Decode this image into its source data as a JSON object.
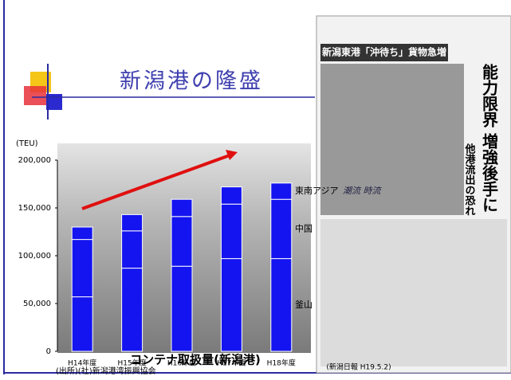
{
  "chart_data": {
    "type": "bar",
    "stacked": true,
    "title": "新潟港の隆盛",
    "y_unit": "(TEU)",
    "x_label": "コンテナ取扱量(新潟港)",
    "source": "(出所)(社)新潟港湾振興協会",
    "categories": [
      "H14年度",
      "H15年度",
      "H16年度",
      "H17年度",
      "H18年度"
    ],
    "series": [
      {
        "name": "釜山",
        "color": "#1414f0",
        "values": [
          57000,
          87000,
          89000,
          97000,
          97000
        ]
      },
      {
        "name": "中国",
        "color": "#1414f0",
        "values": [
          60000,
          39000,
          52000,
          57000,
          62000
        ]
      },
      {
        "name": "東南アジア",
        "color": "#1414f0",
        "values": [
          13000,
          17000,
          18000,
          18000,
          17000
        ]
      }
    ],
    "ylim": [
      0,
      200000
    ],
    "yticks": [
      0,
      {
        "value": 50000,
        "label": "50,000"
      },
      {
        "value": 100000,
        "label": "100,000"
      },
      {
        "value": 150000,
        "label": "150,000"
      },
      {
        "value": 200000,
        "label": "200,000"
      }
    ]
  },
  "clipping": {
    "headline": "新潟東港「沖待ち」貨物急増",
    "main": "能力限界 増強後手に",
    "sub": "他港流出の恐れ",
    "column": "潮流 時流",
    "citation": "(新潟日報 H19.5.2)"
  }
}
